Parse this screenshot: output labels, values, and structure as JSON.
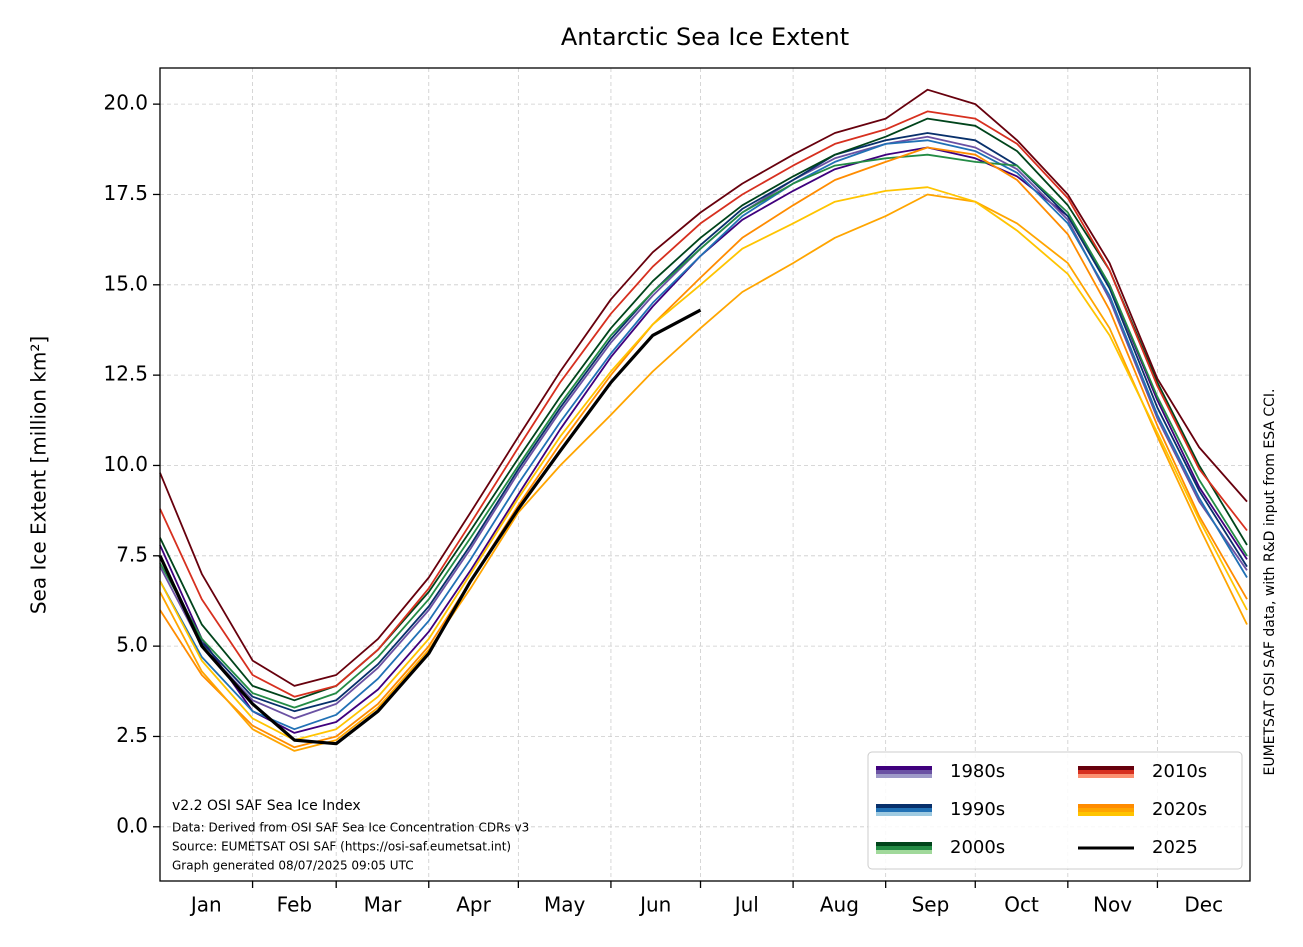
{
  "chart_data": {
    "type": "line",
    "title": "Antarctic Sea Ice Extent",
    "y_label": "Sea Ice Extent [million km²]",
    "annotations": [
      "v2.2 OSI SAF Sea Ice Index",
      "Data: Derived from OSI SAF Sea Ice Concentration CDRs v3",
      "Source: EUMETSAT OSI SAF (https://osi-saf.eumetsat.int)",
      "Graph generated 08/07/2025 09:05 UTC"
    ],
    "side_note": "EUMETSAT OSI SAF data, with R&D input from ESA CCI.",
    "months": [
      "Jan",
      "Feb",
      "Mar",
      "Apr",
      "May",
      "Jun",
      "Jul",
      "Aug",
      "Sep",
      "Oct",
      "Nov",
      "Dec"
    ],
    "x": [
      1,
      15,
      32,
      46,
      60,
      74,
      91,
      105,
      121,
      135,
      152,
      166,
      182,
      196,
      213,
      227,
      244,
      258,
      274,
      288,
      305,
      319,
      335,
      349,
      365
    ],
    "xlim": [
      1,
      366
    ],
    "xticks": [
      32,
      60,
      91,
      121,
      152,
      182,
      213,
      244,
      274,
      305,
      335
    ],
    "ylim": [
      -1.5,
      21
    ],
    "yticks": [
      {
        "value": 0,
        "label": "0.0"
      },
      2.5,
      {
        "value": 5,
        "label": "5.0"
      },
      7.5,
      {
        "value": 10,
        "label": "10.0"
      },
      12.5,
      {
        "value": 15,
        "label": "15.0"
      },
      17.5,
      {
        "value": 20,
        "label": "20.0"
      }
    ],
    "grid": true,
    "legend_position": "lower right",
    "series": [
      {
        "name": "1980s",
        "colors": [
          "#3f007d",
          "#6a51a3",
          "#9e9ac8"
        ],
        "lines": [
          [
            7.8,
            5.2,
            3.2,
            2.6,
            2.9,
            3.8,
            5.4,
            7.1,
            9.2,
            11.0,
            13.0,
            14.4,
            15.8,
            16.8,
            17.6,
            18.2,
            18.6,
            18.8,
            18.5,
            18.0,
            16.9,
            15.0,
            11.8,
            9.4,
            7.4
          ],
          [
            7.2,
            5.0,
            3.5,
            3.0,
            3.4,
            4.4,
            6.0,
            7.7,
            9.8,
            11.5,
            13.4,
            14.7,
            16.0,
            17.0,
            17.9,
            18.5,
            18.9,
            19.1,
            18.8,
            18.2,
            16.8,
            14.6,
            11.3,
            9.0,
            7.1
          ]
        ]
      },
      {
        "name": "1990s",
        "colors": [
          "#08306b",
          "#2171b5",
          "#9ecae1"
        ],
        "lines": [
          [
            7.5,
            5.1,
            3.6,
            3.2,
            3.5,
            4.5,
            6.1,
            7.8,
            9.9,
            11.6,
            13.5,
            14.8,
            16.1,
            17.1,
            17.9,
            18.6,
            19.0,
            19.2,
            19.0,
            18.3,
            16.9,
            14.9,
            11.6,
            9.3,
            7.2
          ],
          [
            6.8,
            4.7,
            3.2,
            2.7,
            3.1,
            4.1,
            5.7,
            7.4,
            9.5,
            11.2,
            13.1,
            14.5,
            15.8,
            16.9,
            17.8,
            18.4,
            18.9,
            19.0,
            18.7,
            18.1,
            16.7,
            14.7,
            11.4,
            9.1,
            6.9
          ]
        ]
      },
      {
        "name": "2000s",
        "colors": [
          "#00441b",
          "#238b45",
          "#a1d99b"
        ],
        "lines": [
          [
            8.0,
            5.6,
            3.9,
            3.5,
            3.9,
            4.9,
            6.5,
            8.2,
            10.2,
            11.9,
            13.8,
            15.1,
            16.3,
            17.2,
            18.0,
            18.6,
            19.1,
            19.6,
            19.4,
            18.7,
            17.2,
            15.4,
            12.3,
            10.0,
            7.8
          ],
          [
            7.3,
            5.2,
            3.7,
            3.3,
            3.7,
            4.7,
            6.3,
            8.0,
            10.0,
            11.7,
            13.6,
            14.8,
            16.0,
            17.0,
            17.8,
            18.3,
            18.5,
            18.6,
            18.4,
            18.3,
            17.0,
            15.0,
            11.9,
            9.6,
            7.5
          ]
        ]
      },
      {
        "name": "2010s",
        "colors": [
          "#67000d",
          "#d7301f",
          "#fc9272"
        ],
        "lines": [
          [
            9.8,
            7.0,
            4.6,
            3.9,
            4.2,
            5.2,
            6.9,
            8.7,
            10.8,
            12.6,
            14.6,
            15.9,
            17.0,
            17.8,
            18.6,
            19.2,
            19.6,
            20.4,
            20.0,
            19.0,
            17.5,
            15.6,
            12.4,
            10.5,
            9.0
          ],
          [
            8.8,
            6.3,
            4.2,
            3.6,
            3.9,
            4.9,
            6.6,
            8.4,
            10.5,
            12.3,
            14.2,
            15.5,
            16.7,
            17.5,
            18.3,
            18.9,
            19.3,
            19.8,
            19.6,
            18.9,
            17.4,
            15.4,
            12.2,
            9.9,
            8.2
          ]
        ]
      },
      {
        "name": "2020s",
        "colors": [
          "#ff8c00",
          "#ffa500",
          "#ffc400"
        ],
        "lines": [
          [
            6.0,
            4.2,
            2.8,
            2.2,
            2.5,
            3.4,
            5.0,
            6.8,
            8.9,
            10.6,
            12.5,
            13.9,
            15.2,
            16.3,
            17.2,
            17.9,
            18.4,
            18.8,
            18.6,
            17.9,
            16.4,
            14.3,
            11.1,
            8.6,
            6.3
          ],
          [
            6.5,
            4.3,
            2.7,
            2.1,
            2.4,
            3.3,
            4.9,
            6.6,
            8.7,
            10.0,
            11.4,
            12.6,
            13.8,
            14.8,
            15.6,
            16.3,
            16.9,
            17.5,
            17.3,
            16.7,
            15.6,
            13.8,
            10.8,
            8.3,
            5.6
          ],
          [
            6.8,
            4.6,
            3.0,
            2.4,
            2.7,
            3.6,
            5.2,
            7.0,
            9.1,
            10.8,
            12.6,
            13.9,
            15.0,
            16.0,
            16.7,
            17.3,
            17.6,
            17.7,
            17.3,
            16.5,
            15.3,
            13.6,
            10.9,
            8.5,
            6.0
          ]
        ]
      },
      {
        "name": "2025",
        "colors": [
          "#000000"
        ],
        "lines": [
          [
            7.5,
            5.0,
            3.4,
            2.4,
            2.3,
            3.2,
            4.8,
            6.8,
            8.8,
            10.4,
            12.3,
            13.6,
            14.3,
            null,
            null,
            null,
            null,
            null,
            null,
            null,
            null,
            null,
            null,
            null,
            null
          ]
        ]
      }
    ]
  }
}
